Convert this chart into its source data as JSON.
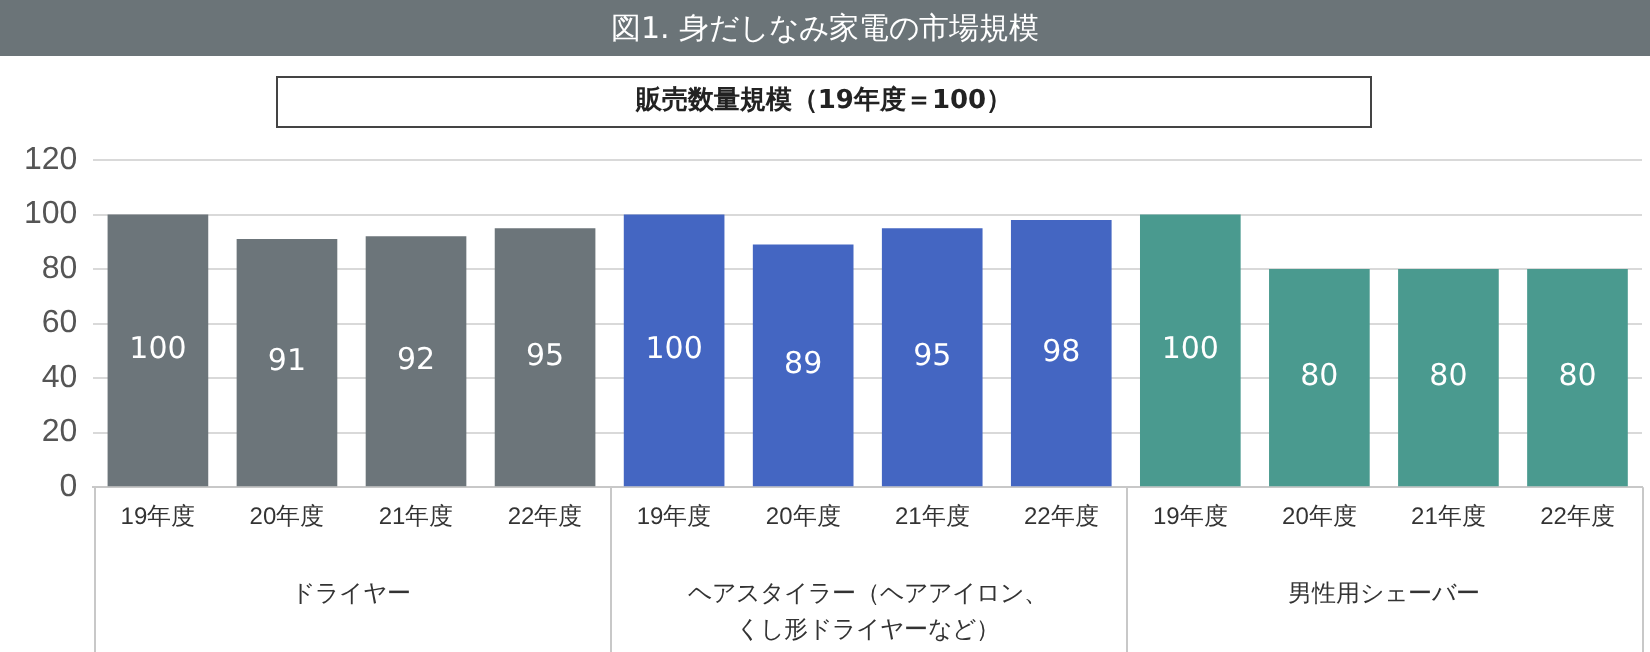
{
  "chart_data": {
    "type": "bar",
    "title": "図1. 身だしなみ家電の市場規模",
    "subtitle": "販売数量規模（19年度＝100）",
    "categories": [
      "19年度",
      "20年度",
      "21年度",
      "22年度",
      "19年度",
      "20年度",
      "21年度",
      "22年度",
      "19年度",
      "20年度",
      "21年度",
      "22年度"
    ],
    "values": [
      100,
      91,
      92,
      95,
      100,
      89,
      95,
      98,
      100,
      80,
      80,
      80
    ],
    "colors": [
      "#6c757a",
      "#6c757a",
      "#6c757a",
      "#6c757a",
      "#4466c2",
      "#4466c2",
      "#4466c2",
      "#4466c2",
      "#4a9a8f",
      "#4a9a8f",
      "#4a9a8f",
      "#4a9a8f"
    ],
    "annotations": [
      "ドライヤー",
      "ヘアスタイラー（ヘアアイロン、くし形ドライヤーなど）",
      "男性用シェーバー"
    ],
    "ylim": [
      0,
      120
    ],
    "yticks": [
      0,
      20,
      40,
      60,
      80,
      100,
      120
    ],
    "grid": "y",
    "data_labels": true
  }
}
